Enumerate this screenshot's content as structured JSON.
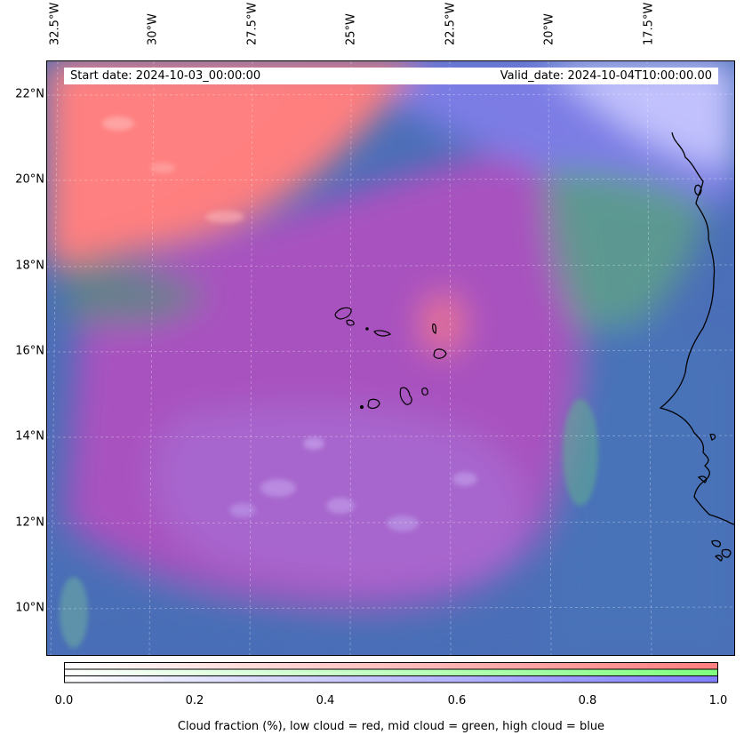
{
  "map": {
    "header": {
      "start_date": "Start date: 2024-10-03_00:00:00",
      "valid_date": "Valid_date: 2024-10-04T10:00:00.00"
    },
    "lon_labels": [
      "32.5°W",
      "30°W",
      "27.5°W",
      "25°W",
      "22.5°W",
      "20°W",
      "17.5°W"
    ],
    "lat_labels": [
      "22°N",
      "20°N",
      "18°N",
      "16°N",
      "14°N",
      "12°N",
      "10°N"
    ],
    "colors": {
      "low_cloud": "#ff7f7f",
      "mid_cloud": "#7fff7f",
      "high_cloud": "#7f7fff",
      "ocean_base": "#4a72b8",
      "coastline": "#000000"
    }
  },
  "colorbar": {
    "ticks": [
      "0.0",
      "0.2",
      "0.4",
      "0.6",
      "0.8",
      "1.0"
    ],
    "label": "Cloud fraction (%), low cloud = red, mid cloud = green, high cloud = blue",
    "range": [
      0.0,
      1.0
    ]
  }
}
